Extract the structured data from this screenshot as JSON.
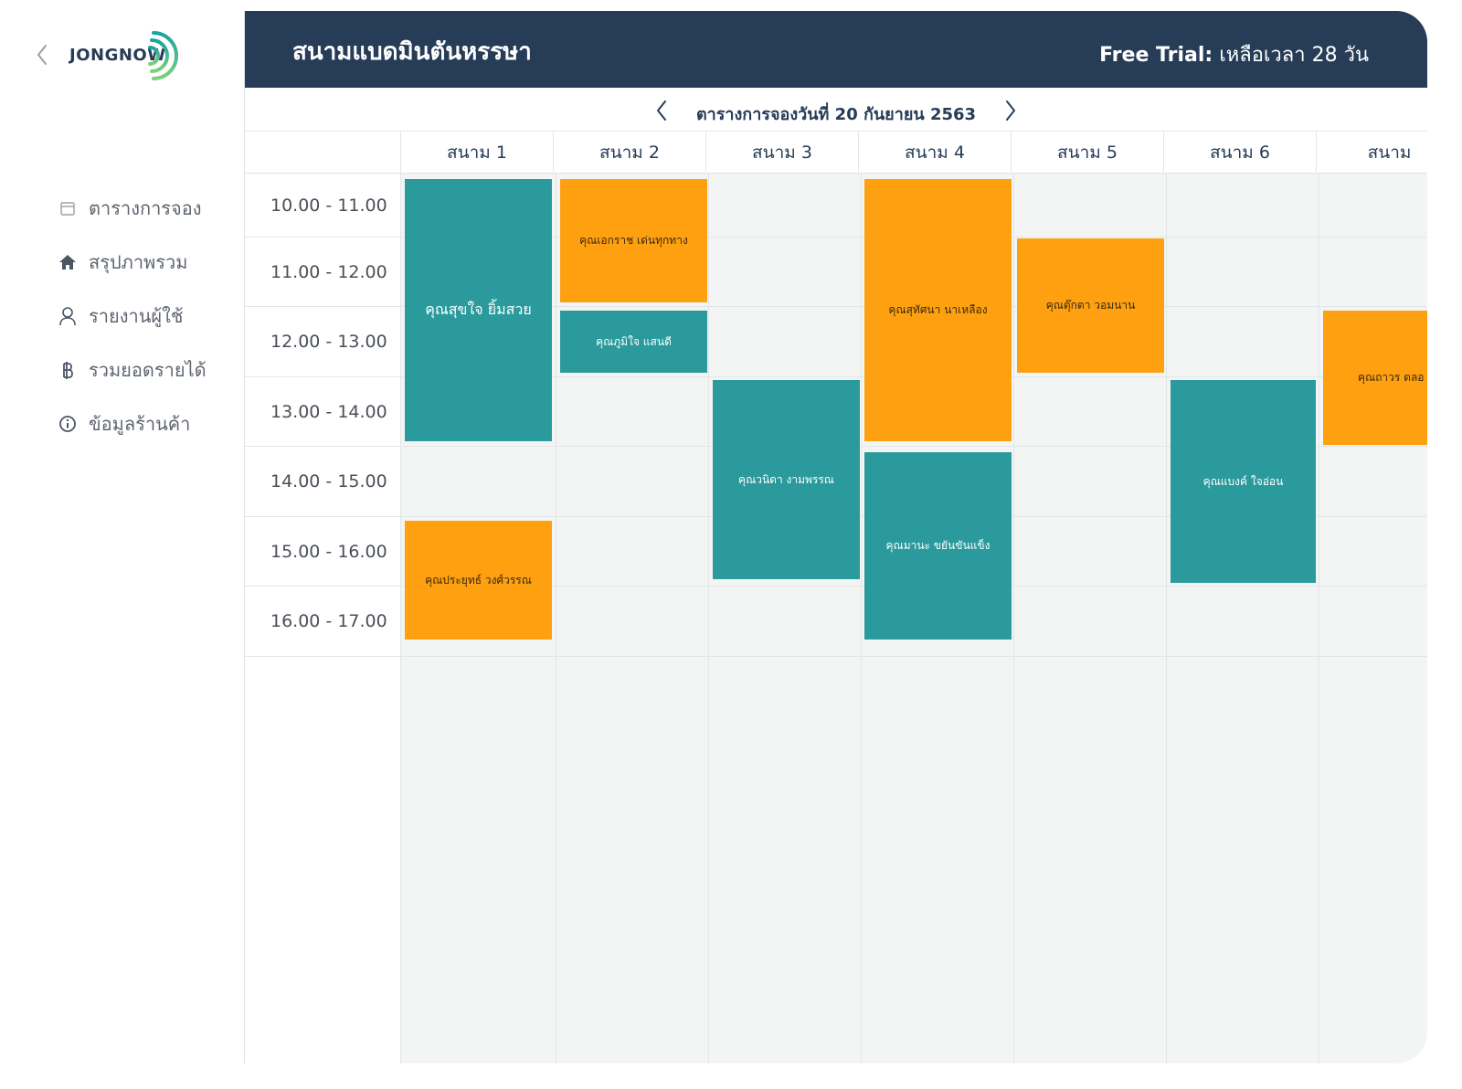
{
  "sidebar": {
    "logo_text": "JONGNOW",
    "items": [
      {
        "label": "ตารางการจอง",
        "icon": "calendar-icon"
      },
      {
        "label": "สรุปภาพรวม",
        "icon": "home-icon"
      },
      {
        "label": "รายงานผู้ใช้",
        "icon": "user-icon"
      },
      {
        "label": "รวมยอดรายได้",
        "icon": "baht-icon"
      },
      {
        "label": "ข้อมูลร้านค้า",
        "icon": "info-icon"
      }
    ]
  },
  "header": {
    "title": "สนามแบดมินตันหรรษา",
    "trial_label": "Free Trial:",
    "trial_text": " เหลือเวลา 28 วัน"
  },
  "date_nav": {
    "title": "ตารางการจองวันที่ 20 กันยายน 2563"
  },
  "courts": [
    "สนาม 1",
    "สนาม 2",
    "สนาม 3",
    "สนาม 4",
    "สนาม 5",
    "สนาม 6",
    "สนาม"
  ],
  "time_slots": [
    "10.00 - 11.00",
    "11.00 - 12.00",
    "12.00 - 13.00",
    "13.00 - 14.00",
    "14.00 - 15.00",
    "15.00 - 16.00",
    "16.00 - 17.00"
  ],
  "bookings": [
    {
      "name": "คุณสุขใจ ยิ้มสวย",
      "color": "teal"
    },
    {
      "name": "คุณประยุทธ์ วงศ์วรรณ",
      "color": "orange"
    },
    {
      "name": "คุณเอกราช เด่นทุกทาง",
      "color": "orange"
    },
    {
      "name": "คุณภูมิใจ แสนดี",
      "color": "teal"
    },
    {
      "name": "คุณวนิดา งามพรรณ",
      "color": "teal"
    },
    {
      "name": "คุณสุทัศนา นาเหลือง",
      "color": "orange"
    },
    {
      "name": "คุณมานะ ขยันขันแข็ง",
      "color": "teal"
    },
    {
      "name": "คุณตุ๊กตา วอมนาน",
      "color": "orange"
    },
    {
      "name": "คุณแบงค์ ใจอ่อน",
      "color": "teal"
    },
    {
      "name": "คุณถาวร ตลอ",
      "color": "orange"
    }
  ],
  "colors": {
    "header_bg": "#263c57",
    "teal": "#2b9a9c",
    "orange": "#fea010",
    "grid_bg": "#f3f5f4"
  }
}
